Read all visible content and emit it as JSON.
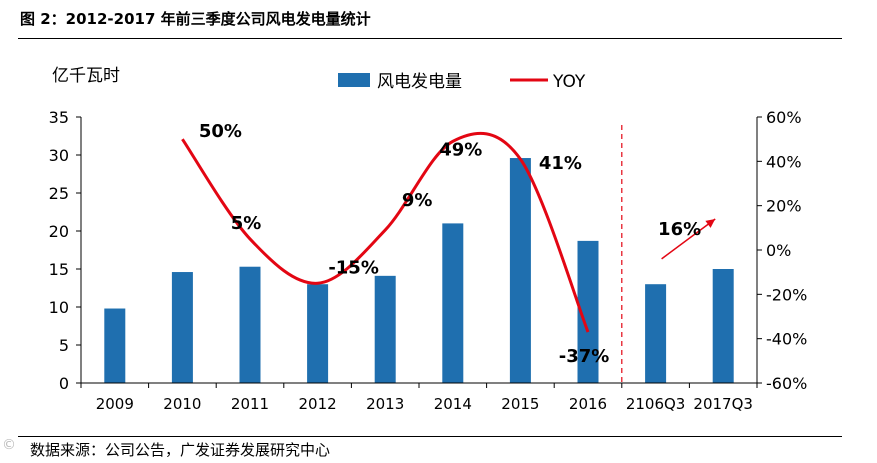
{
  "figure": {
    "title": "图 2：2012-2017 年前三季度公司风电发电量统计",
    "source": "数据来源：公司公告，广发证券发展研究中心",
    "watermark": "©"
  },
  "colors": {
    "bar": "#1f6faf",
    "line": "#e30613",
    "divider": "#e30613"
  },
  "chart_data": {
    "type": "bar",
    "title": "",
    "ylabel": "亿千瓦时",
    "categories": [
      "2009",
      "2010",
      "2011",
      "2012",
      "2013",
      "2014",
      "2015",
      "2016",
      "2106Q3",
      "2017Q3"
    ],
    "series": [
      {
        "name": "风电发电量",
        "type": "bar",
        "axis": "left",
        "values": [
          9.8,
          14.6,
          15.3,
          13.0,
          14.1,
          21.0,
          29.6,
          18.7,
          13.0,
          15.0
        ]
      },
      {
        "name": "YOY",
        "type": "line",
        "axis": "right",
        "values": [
          null,
          50,
          5,
          -15,
          9,
          49,
          41,
          -37,
          null,
          null
        ],
        "labels": [
          "",
          "50%",
          "5%",
          "-15%",
          "9%",
          "49%",
          "41%",
          "-37%",
          "",
          ""
        ]
      }
    ],
    "ylim": [
      0,
      35
    ],
    "yticks": [
      "0",
      "5",
      "10",
      "15",
      "20",
      "25",
      "30",
      "35"
    ],
    "y2lim": [
      -60,
      60
    ],
    "y2ticks": [
      "-60%",
      "-40%",
      "-20%",
      "0%",
      "20%",
      "40%",
      "60%"
    ],
    "annotation": {
      "text": "16%",
      "arrow_from": [
        8,
        -4
      ],
      "arrow_to": [
        9,
        14
      ]
    },
    "divider_after_category": 7,
    "legend": {
      "position": "top",
      "entries": [
        "风电发电量",
        "YOY"
      ]
    }
  }
}
